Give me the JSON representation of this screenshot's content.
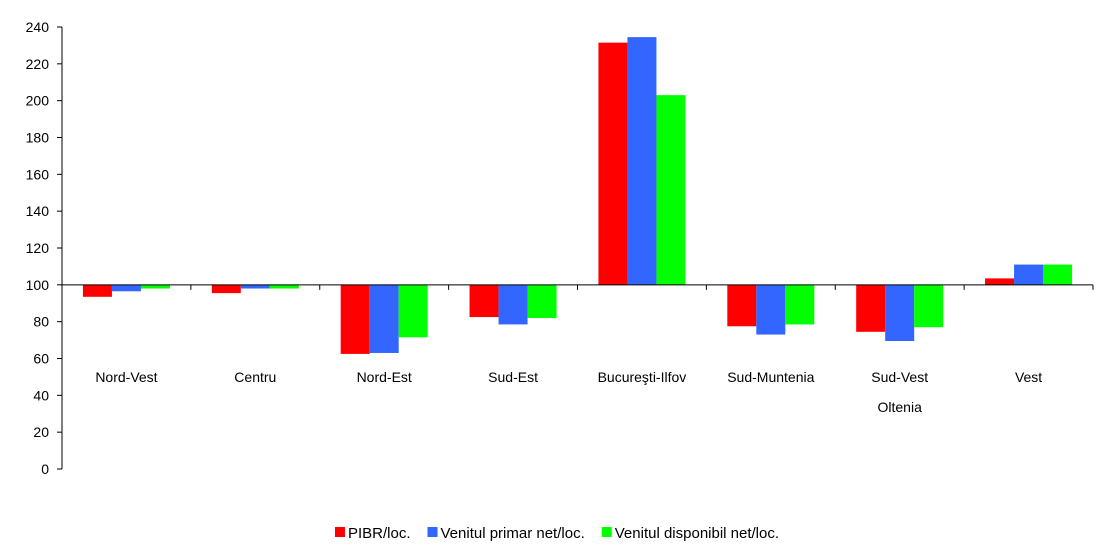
{
  "chart_data": {
    "type": "bar",
    "title": "",
    "xlabel": "",
    "ylabel": "",
    "ylim": [
      0,
      240
    ],
    "baseline": 100,
    "yticks": [
      0,
      20,
      40,
      60,
      80,
      100,
      120,
      140,
      160,
      180,
      200,
      220,
      240
    ],
    "grid": false,
    "legend_position": "bottom",
    "categories": [
      [
        "Nord-Vest"
      ],
      [
        "Centru"
      ],
      [
        "Nord-Est"
      ],
      [
        "Sud-Est"
      ],
      [
        "Bucureşti-Ilfov"
      ],
      [
        "Sud-Muntenia"
      ],
      [
        "Sud-Vest",
        "Oltenia"
      ],
      [
        "Vest"
      ]
    ],
    "series": [
      {
        "name": "PIBR/loc.",
        "color": "#ff0000",
        "values": [
          93.5,
          95.5,
          62.5,
          82.5,
          231.5,
          77.5,
          74.5,
          103.5
        ]
      },
      {
        "name": "Venitul primar net/loc.",
        "color": "#3366ff",
        "values": [
          96.5,
          98,
          63,
          78.5,
          234.5,
          73,
          69.5,
          111
        ]
      },
      {
        "name": "Venitul disponibil net/loc.",
        "color": "#00ff00",
        "values": [
          98,
          98,
          71.5,
          82,
          203,
          78.5,
          77,
          111
        ]
      }
    ]
  }
}
